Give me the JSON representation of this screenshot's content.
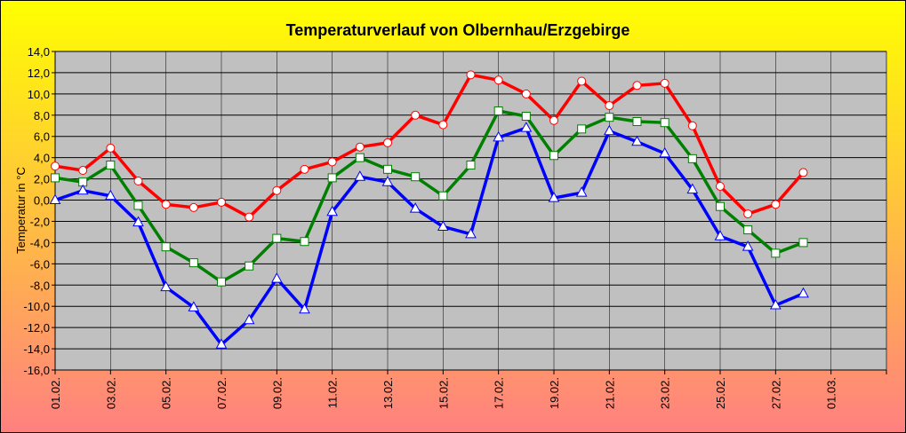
{
  "chart_data": {
    "type": "line",
    "title": "Temperaturverlauf von Olbernhau/Erzgebirge",
    "y_label": "Temperatur in °C",
    "categories": [
      "01.02.",
      null,
      "03.02.",
      null,
      "05.02.",
      null,
      "07.02.",
      null,
      "09.02.",
      null,
      "11.02.",
      null,
      "13.02.",
      null,
      "15.02.",
      null,
      "17.02.",
      null,
      "19.02.",
      null,
      "21.02.",
      null,
      "23.02.",
      null,
      "25.02.",
      null,
      "27.02.",
      null,
      "01.03.",
      null,
      null
    ],
    "series": [
      {
        "color": "#ff0000",
        "marker": "circle",
        "values": [
          3.2,
          2.8,
          4.9,
          1.8,
          -0.4,
          -0.7,
          -0.2,
          -1.6,
          0.9,
          2.9,
          3.6,
          5.0,
          5.4,
          8.0,
          7.1,
          11.8,
          11.3,
          10.0,
          7.5,
          11.2,
          8.9,
          10.8,
          11.0,
          7.0,
          1.3,
          -1.3,
          -0.4,
          2.6,
          null,
          null,
          null
        ]
      },
      {
        "color": "#008000",
        "marker": "square",
        "values": [
          2.1,
          1.7,
          3.3,
          -0.5,
          -4.4,
          -5.9,
          -7.7,
          -6.2,
          -3.6,
          -3.9,
          2.1,
          4.0,
          2.9,
          2.2,
          0.4,
          3.3,
          8.4,
          7.9,
          4.2,
          6.7,
          7.8,
          7.4,
          7.3,
          3.9,
          -0.6,
          -2.8,
          -5.0,
          -4.0,
          null,
          null,
          null
        ]
      },
      {
        "color": "#0000ff",
        "marker": "triangle",
        "values": [
          0.0,
          0.9,
          0.4,
          -2.1,
          -8.2,
          -10.1,
          -13.6,
          -11.3,
          -7.4,
          -10.3,
          -1.1,
          2.2,
          1.7,
          -0.8,
          -2.5,
          -3.2,
          5.9,
          6.8,
          0.2,
          0.7,
          6.5,
          5.5,
          4.4,
          1.0,
          -3.4,
          -4.4,
          -9.9,
          -8.8,
          null,
          null,
          null
        ]
      }
    ],
    "ylim": [
      -16,
      14
    ],
    "yticks": [
      {
        "value": -16,
        "label": "-16,0"
      },
      {
        "value": -14,
        "label": "-14,0"
      },
      {
        "value": -12,
        "label": "-12,0"
      },
      {
        "value": -10,
        "label": "-10,0"
      },
      {
        "value": -8,
        "label": "-8,0"
      },
      {
        "value": -6,
        "label": "-6,0"
      },
      {
        "value": -4,
        "label": "-4,0"
      },
      {
        "value": -2,
        "label": "-2,0"
      },
      {
        "value": 0,
        "label": "0,0"
      },
      {
        "value": 2,
        "label": "2,0"
      },
      {
        "value": 4,
        "label": "4,0"
      },
      {
        "value": 6,
        "label": "6,0"
      },
      {
        "value": 8,
        "label": "8,0"
      },
      {
        "value": 10,
        "label": "10,0"
      },
      {
        "value": 12,
        "label": "12,0"
      },
      {
        "value": 14,
        "label": "14,0"
      }
    ],
    "grid": true
  }
}
